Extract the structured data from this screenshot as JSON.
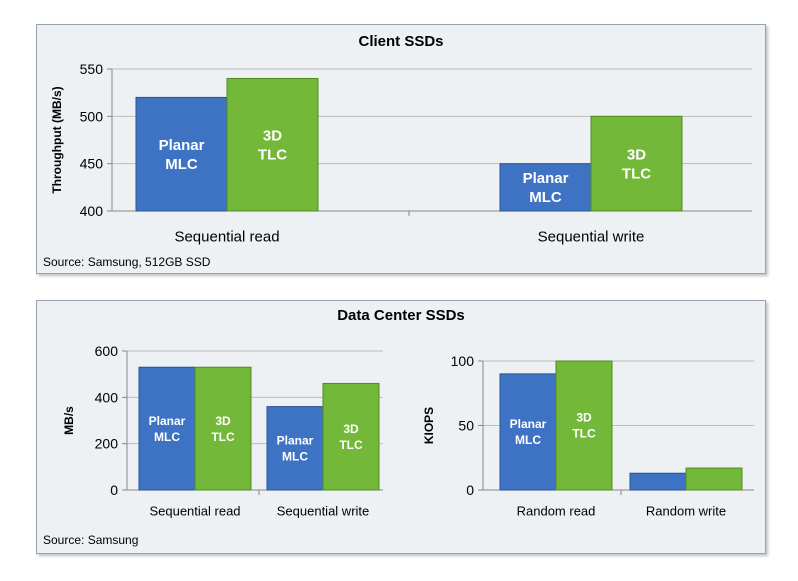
{
  "panels": [
    {
      "title": "Client SSDs",
      "source": "Source: Samsung, 512GB SSD"
    },
    {
      "title": "Data Center SSDs",
      "source": "Source: Samsung"
    }
  ],
  "colors": {
    "planar_mlc": "#3d73c2",
    "tlc_3d": "#74b83a"
  },
  "chart_data": [
    {
      "type": "bar",
      "title": "Client SSDs",
      "ylabel": "Throughput (MB/s)",
      "xlabel": "",
      "categories": [
        "Sequential read",
        "Sequential write"
      ],
      "ylim": [
        400,
        550
      ],
      "yticks": [
        400,
        450,
        500,
        550
      ],
      "grid": true,
      "series": [
        {
          "name": "Planar MLC",
          "bar_label": [
            "Planar",
            "MLC"
          ],
          "values": [
            520,
            450
          ]
        },
        {
          "name": "3D TLC",
          "bar_label": [
            "3D",
            "TLC"
          ],
          "values": [
            540,
            500
          ]
        }
      ]
    },
    {
      "type": "bar",
      "title": "",
      "ylabel": "MB/s",
      "xlabel": "",
      "categories": [
        "Sequential read",
        "Sequential write"
      ],
      "ylim": [
        0,
        600
      ],
      "yticks": [
        0,
        200,
        400,
        600
      ],
      "grid": true,
      "series": [
        {
          "name": "Planar MLC",
          "bar_label": [
            "Planar",
            "MLC"
          ],
          "values": [
            530,
            360
          ]
        },
        {
          "name": "3D TLC",
          "bar_label": [
            "3D",
            "TLC"
          ],
          "values": [
            530,
            460
          ]
        }
      ]
    },
    {
      "type": "bar",
      "title": "",
      "ylabel": "KIOPS",
      "xlabel": "",
      "categories": [
        "Random read",
        "Random write"
      ],
      "ylim": [
        0,
        100
      ],
      "yticks": [
        0,
        50,
        100
      ],
      "grid": true,
      "series": [
        {
          "name": "Planar MLC",
          "bar_label": [
            "Planar",
            "MLC"
          ],
          "values": [
            90,
            13
          ]
        },
        {
          "name": "3D TLC",
          "bar_label": [
            "3D",
            "TLC"
          ],
          "values": [
            100,
            17
          ]
        }
      ]
    }
  ]
}
